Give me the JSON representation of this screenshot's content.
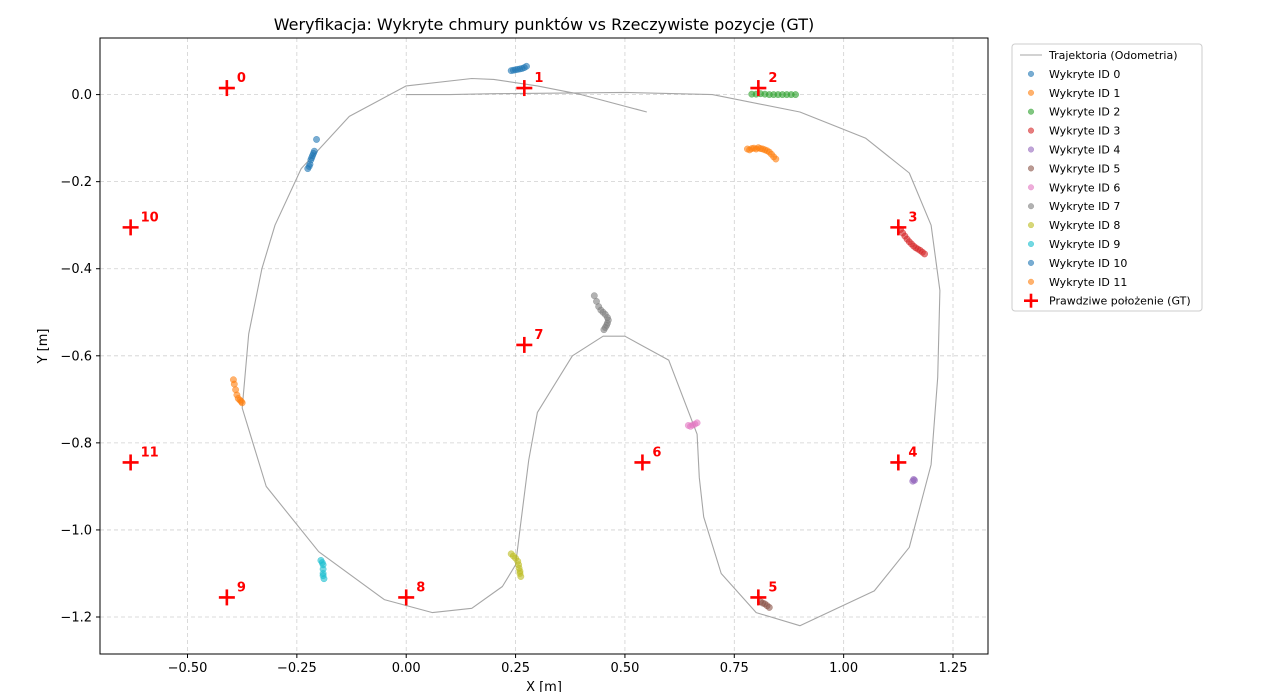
{
  "chart_data": {
    "type": "scatter",
    "title": "Weryfikacja: Wykryte chmury punktów vs Rzeczywiste pozycje (GT)",
    "xlabel": "X [m]",
    "ylabel": "Y [m]",
    "xlim": [
      -0.7,
      1.33
    ],
    "ylim": [
      -1.285,
      0.13
    ],
    "grid": true,
    "xticks": [
      -0.5,
      -0.25,
      0.0,
      0.25,
      0.5,
      0.75,
      1.0,
      1.25
    ],
    "xtick_labels": [
      "−0.50",
      "−0.25",
      "0.00",
      "0.25",
      "0.50",
      "0.75",
      "1.00",
      "1.25"
    ],
    "yticks": [
      0.0,
      -0.2,
      -0.4,
      -0.6,
      -0.8,
      -1.0,
      -1.2
    ],
    "ytick_labels": [
      "0.0",
      "−0.2",
      "−0.4",
      "−0.6",
      "−0.8",
      "−1.0",
      "−1.2"
    ],
    "legend_position": "outside-right",
    "trajectory": {
      "name": "Trajektoria (Odometria)",
      "color": "#a6a6a6",
      "x": [
        0.0,
        0.1,
        0.2,
        0.3,
        0.5,
        0.7,
        0.9,
        1.05,
        1.15,
        1.2,
        1.22,
        1.215,
        1.2,
        1.15,
        1.07,
        0.9,
        0.8,
        0.72,
        0.68,
        0.67,
        0.665,
        0.6,
        0.5,
        0.45,
        0.38,
        0.3,
        0.28,
        0.26,
        0.25,
        0.22,
        0.15,
        0.06,
        -0.05,
        -0.2,
        -0.32,
        -0.375,
        -0.36,
        -0.33,
        -0.3,
        -0.24,
        -0.13,
        0.0,
        0.15,
        0.2,
        0.3,
        0.4,
        0.55
      ],
      "y": [
        0.0,
        0.0,
        0.002,
        0.003,
        0.005,
        0.0,
        -0.04,
        -0.1,
        -0.18,
        -0.3,
        -0.45,
        -0.65,
        -0.85,
        -1.04,
        -1.14,
        -1.22,
        -1.19,
        -1.1,
        -0.97,
        -0.88,
        -0.78,
        -0.61,
        -0.555,
        -0.555,
        -0.6,
        -0.73,
        -0.84,
        -1.0,
        -1.08,
        -1.13,
        -1.18,
        -1.19,
        -1.16,
        -1.05,
        -0.9,
        -0.72,
        -0.55,
        -0.4,
        -0.3,
        -0.17,
        -0.05,
        0.02,
        0.037,
        0.035,
        0.02,
        0.0,
        -0.04
      ]
    },
    "series": [
      {
        "name": "Wykryte ID 0",
        "color": "#1f77b4",
        "x": [
          0.24,
          0.245,
          0.25,
          0.255,
          0.26,
          0.265,
          0.27,
          0.275,
          -0.225,
          -0.222,
          -0.22,
          -0.218,
          -0.216,
          -0.214,
          -0.212,
          -0.21,
          -0.205
        ],
        "y": [
          0.055,
          0.056,
          0.057,
          0.058,
          0.059,
          0.06,
          0.062,
          0.065,
          -0.17,
          -0.165,
          -0.16,
          -0.15,
          -0.145,
          -0.14,
          -0.135,
          -0.13,
          -0.103
        ]
      },
      {
        "name": "Wykryte ID 1",
        "color": "#ff7f0e",
        "x": [
          0.78,
          0.785,
          0.79,
          0.795,
          0.8,
          0.805,
          0.81,
          0.815,
          0.82,
          0.825,
          0.83,
          0.835,
          0.84,
          0.845
        ],
        "y": [
          -0.125,
          -0.127,
          -0.124,
          -0.123,
          -0.125,
          -0.122,
          -0.124,
          -0.125,
          -0.127,
          -0.129,
          -0.132,
          -0.137,
          -0.143,
          -0.148
        ]
      },
      {
        "name": "Wykryte ID 2",
        "color": "#2ca02c",
        "x": [
          0.79,
          0.8,
          0.81,
          0.82,
          0.83,
          0.84,
          0.85,
          0.86,
          0.87,
          0.88,
          0.89
        ],
        "y": [
          0.001,
          0.001,
          0.002,
          0.001,
          0.0,
          0.0,
          0.0,
          0.0,
          0.0,
          0.0,
          0.0
        ]
      },
      {
        "name": "Wykryte ID 3",
        "color": "#d62728",
        "x": [
          1.13,
          1.135,
          1.14,
          1.145,
          1.15,
          1.155,
          1.16,
          1.165,
          1.17,
          1.175,
          1.18,
          1.185
        ],
        "y": [
          -0.31,
          -0.318,
          -0.325,
          -0.332,
          -0.338,
          -0.343,
          -0.348,
          -0.352,
          -0.355,
          -0.358,
          -0.362,
          -0.366
        ]
      },
      {
        "name": "Wykryte ID 4",
        "color": "#9467bd",
        "x": [
          1.16,
          1.162,
          1.158
        ],
        "y": [
          -0.884,
          -0.886,
          -0.888
        ]
      },
      {
        "name": "Wykryte ID 5",
        "color": "#8c564b",
        "x": [
          0.81,
          0.815,
          0.82,
          0.825,
          0.83
        ],
        "y": [
          -1.165,
          -1.168,
          -1.17,
          -1.174,
          -1.178
        ]
      },
      {
        "name": "Wykryte ID 6",
        "color": "#e377c2",
        "x": [
          0.645,
          0.65,
          0.655,
          0.66,
          0.665
        ],
        "y": [
          -0.76,
          -0.762,
          -0.759,
          -0.757,
          -0.754
        ]
      },
      {
        "name": "Wykryte ID 7",
        "color": "#7f7f7f",
        "x": [
          0.43,
          0.435,
          0.44,
          0.445,
          0.45,
          0.455,
          0.46,
          0.462,
          0.46,
          0.458,
          0.455,
          0.452
        ],
        "y": [
          -0.462,
          -0.475,
          -0.487,
          -0.495,
          -0.5,
          -0.505,
          -0.512,
          -0.518,
          -0.525,
          -0.53,
          -0.535,
          -0.54
        ]
      },
      {
        "name": "Wykryte ID 8",
        "color": "#bcbd22",
        "x": [
          0.24,
          0.245,
          0.25,
          0.255,
          0.257,
          0.258,
          0.26,
          0.26,
          0.262
        ],
        "y": [
          -1.055,
          -1.06,
          -1.065,
          -1.072,
          -1.08,
          -1.088,
          -1.095,
          -1.1,
          -1.107
        ]
      },
      {
        "name": "Wykryte ID 9",
        "color": "#17becf",
        "x": [
          -0.195,
          -0.192,
          -0.19,
          -0.19,
          -0.19,
          -0.19,
          -0.188
        ],
        "y": [
          -1.07,
          -1.075,
          -1.08,
          -1.09,
          -1.1,
          -1.105,
          -1.112
        ]
      },
      {
        "name": "Wykryte ID 10",
        "color": "#1f77b4",
        "x": [],
        "y": []
      },
      {
        "name": "Wykryte ID 11",
        "color": "#ff7f0e",
        "x": [
          -0.395,
          -0.393,
          -0.39,
          -0.387,
          -0.384,
          -0.38,
          -0.377,
          -0.375
        ],
        "y": [
          -0.655,
          -0.665,
          -0.678,
          -0.69,
          -0.698,
          -0.702,
          -0.705,
          -0.708
        ]
      }
    ],
    "ground_truth": {
      "name": "Prawdziwe położenie (GT)",
      "color": "#ff0000",
      "points": [
        {
          "id": "0",
          "x": -0.41,
          "y": 0.015
        },
        {
          "id": "1",
          "x": 0.27,
          "y": 0.015
        },
        {
          "id": "2",
          "x": 0.805,
          "y": 0.015
        },
        {
          "id": "3",
          "x": 1.125,
          "y": -0.305
        },
        {
          "id": "4",
          "x": 1.125,
          "y": -0.845
        },
        {
          "id": "5",
          "x": 0.805,
          "y": -1.155
        },
        {
          "id": "6",
          "x": 0.54,
          "y": -0.845
        },
        {
          "id": "7",
          "x": 0.27,
          "y": -0.575
        },
        {
          "id": "8",
          "x": 0.0,
          "y": -1.155
        },
        {
          "id": "9",
          "x": -0.41,
          "y": -1.155
        },
        {
          "id": "10",
          "x": -0.63,
          "y": -0.305
        },
        {
          "id": "11",
          "x": -0.63,
          "y": -0.845
        }
      ]
    }
  }
}
